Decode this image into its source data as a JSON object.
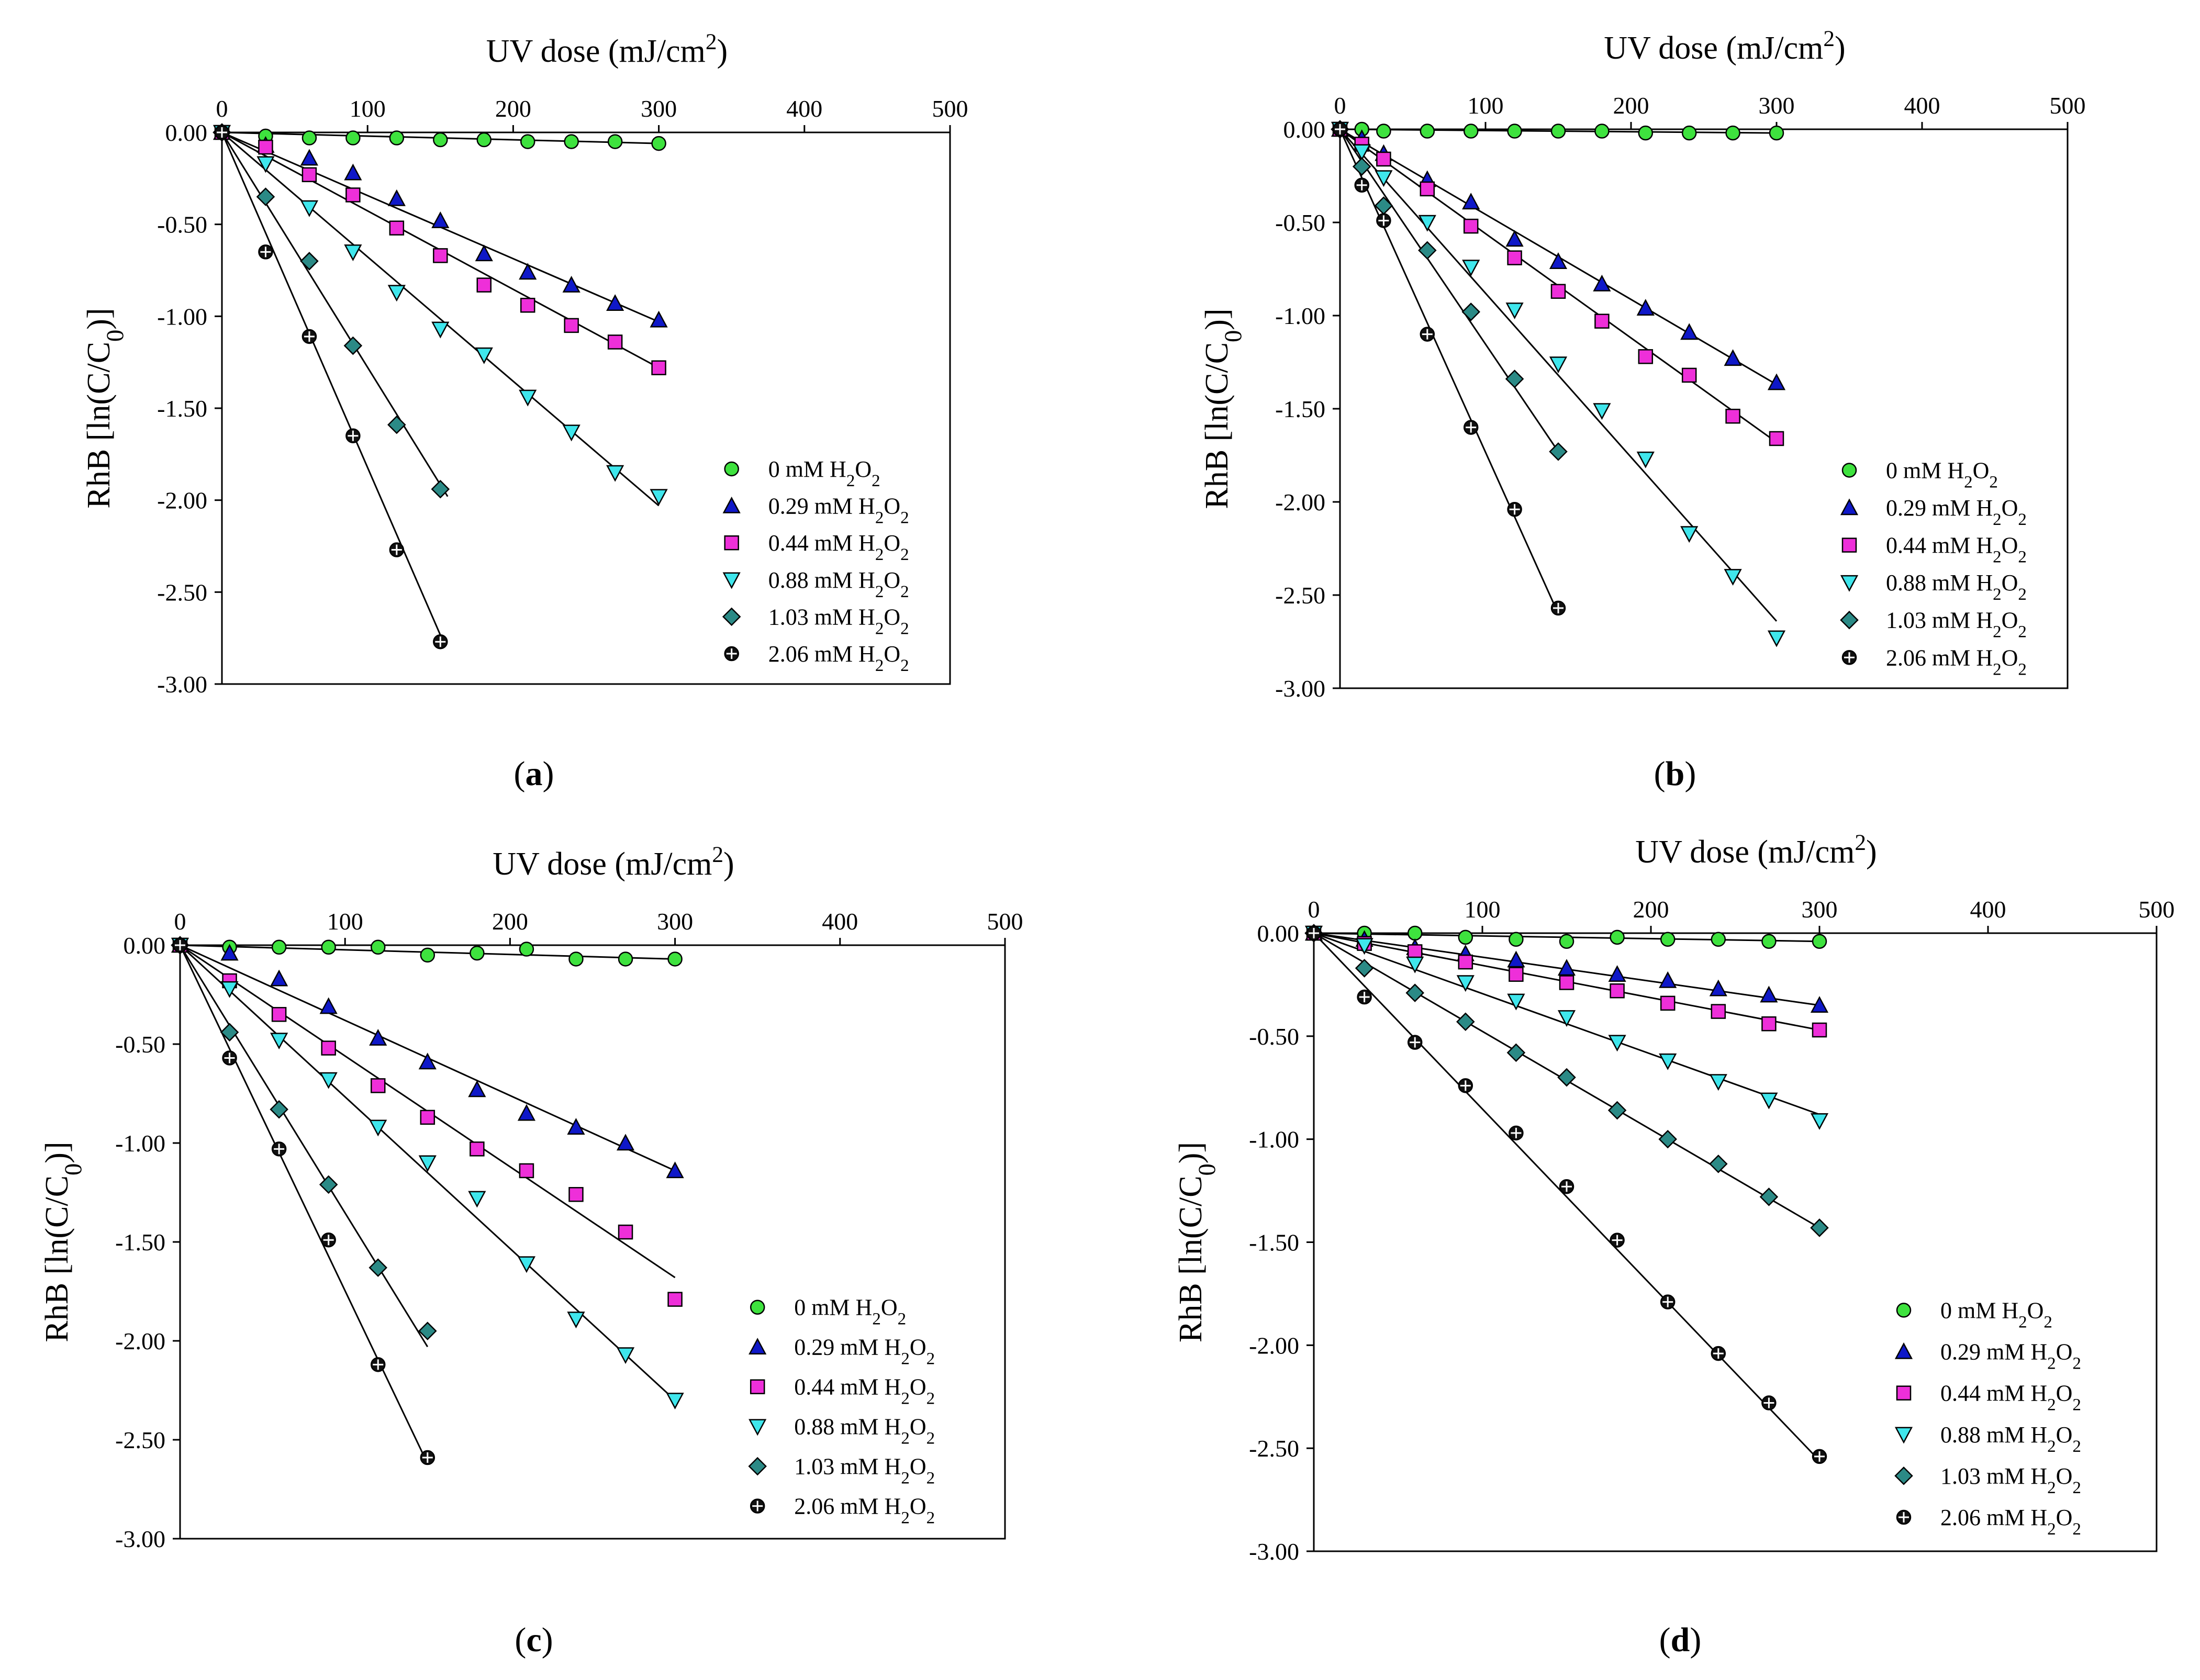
{
  "colors": {
    "0 mM": "#3ee23e",
    "0.29 mM": "#0f18c8",
    "0.44 mM": "#ee2fd9",
    "0.88 mM": "#3fe6ec",
    "1.03 mM": "#2b8a86",
    "2.06 mM": "#111111"
  },
  "chart_data": [
    {
      "type": "scatter",
      "panel": "a",
      "panel_label": "(a)",
      "title": "",
      "xlabel": "UV dose (mJ/cm2)",
      "ylabel": "RhB [ln(C/C0)]",
      "xlim": [
        0,
        500
      ],
      "ylim": [
        -3.0,
        0.0
      ],
      "xticks": [
        "0",
        "100",
        "200",
        "300",
        "400",
        "500"
      ],
      "yticks": [
        "0.00",
        "-0.50",
        "-1.00",
        "-1.50",
        "-2.00",
        "-2.50",
        "-3.00"
      ],
      "legend_position": "lower-right",
      "series": [
        {
          "name": "0 mM H2O2",
          "marker": "circle",
          "x": [
            0,
            30,
            60,
            90,
            120,
            150,
            180,
            210,
            240,
            270,
            300
          ],
          "y": [
            0,
            -0.02,
            -0.03,
            -0.03,
            -0.03,
            -0.04,
            -0.04,
            -0.05,
            -0.05,
            -0.05,
            -0.06
          ],
          "fit": [
            [
              0,
              0
            ],
            [
              300,
              -0.06
            ]
          ]
        },
        {
          "name": "0.29 mM H2O2",
          "marker": "triangle-up",
          "x": [
            0,
            30,
            60,
            90,
            120,
            150,
            180,
            210,
            240,
            270,
            300
          ],
          "y": [
            0,
            -0.07,
            -0.14,
            -0.22,
            -0.36,
            -0.48,
            -0.66,
            -0.76,
            -0.83,
            -0.93,
            -1.02
          ],
          "fit": [
            [
              0,
              0
            ],
            [
              300,
              -1.03
            ]
          ]
        },
        {
          "name": "0.44 mM H2O2",
          "marker": "square",
          "x": [
            0,
            30,
            60,
            90,
            120,
            150,
            180,
            210,
            240,
            270,
            300
          ],
          "y": [
            0,
            -0.08,
            -0.23,
            -0.34,
            -0.52,
            -0.67,
            -0.83,
            -0.94,
            -1.05,
            -1.14,
            -1.28
          ],
          "fit": [
            [
              0,
              0
            ],
            [
              300,
              -1.28
            ]
          ]
        },
        {
          "name": "0.88 mM H2O2",
          "marker": "triangle-down",
          "x": [
            0,
            30,
            60,
            90,
            120,
            150,
            180,
            210,
            240,
            270,
            300
          ],
          "y": [
            0,
            -0.17,
            -0.41,
            -0.65,
            -0.87,
            -1.07,
            -1.21,
            -1.44,
            -1.63,
            -1.85,
            -1.98
          ],
          "fit": [
            [
              0,
              0
            ],
            [
              300,
              -2.03
            ]
          ]
        },
        {
          "name": "1.03 mM H2O2",
          "marker": "diamond",
          "x": [
            0,
            30,
            60,
            90,
            120,
            150
          ],
          "y": [
            0,
            -0.35,
            -0.7,
            -1.16,
            -1.59,
            -1.94
          ],
          "fit": [
            [
              0,
              0
            ],
            [
              155,
              -1.98
            ]
          ]
        },
        {
          "name": "2.06 mM H2O2",
          "marker": "plus-circle",
          "x": [
            0,
            30,
            60,
            90,
            120,
            150
          ],
          "y": [
            0,
            -0.65,
            -1.11,
            -1.65,
            -2.27,
            -2.77
          ],
          "fit": [
            [
              0,
              0
            ],
            [
              152,
              -2.77
            ]
          ]
        }
      ]
    },
    {
      "type": "scatter",
      "panel": "b",
      "panel_label": "(b)",
      "title": "",
      "xlabel": "UV dose (mJ/cm2)",
      "ylabel": "RhB [ln(C/C0)]",
      "xlim": [
        0,
        500
      ],
      "ylim": [
        -3.0,
        0.0
      ],
      "xticks": [
        "0",
        "100",
        "200",
        "300",
        "400",
        "500"
      ],
      "yticks": [
        "0.00",
        "-0.50",
        "-1.00",
        "-1.50",
        "-2.00",
        "-2.50",
        "-3.00"
      ],
      "legend_position": "lower-right",
      "series": [
        {
          "name": "0 mM H2O2",
          "marker": "circle",
          "x": [
            0,
            15,
            30,
            60,
            90,
            120,
            150,
            180,
            210,
            240,
            270,
            300
          ],
          "y": [
            0,
            0,
            -0.01,
            -0.01,
            -0.01,
            -0.01,
            -0.01,
            -0.01,
            -0.02,
            -0.02,
            -0.02,
            -0.02
          ],
          "fit": [
            [
              0,
              0
            ],
            [
              300,
              -0.02
            ]
          ]
        },
        {
          "name": "0.29 mM H2O2",
          "marker": "triangle-up",
          "x": [
            0,
            15,
            30,
            60,
            90,
            120,
            150,
            180,
            210,
            240,
            270,
            300
          ],
          "y": [
            0,
            -0.05,
            -0.13,
            -0.27,
            -0.39,
            -0.59,
            -0.71,
            -0.83,
            -0.96,
            -1.09,
            -1.23,
            -1.36
          ],
          "fit": [
            [
              0,
              0
            ],
            [
              300,
              -1.37
            ]
          ]
        },
        {
          "name": "0.44 mM H2O2",
          "marker": "square",
          "x": [
            0,
            15,
            30,
            60,
            90,
            120,
            150,
            180,
            210,
            240,
            270,
            300
          ],
          "y": [
            0,
            -0.08,
            -0.16,
            -0.32,
            -0.52,
            -0.69,
            -0.87,
            -1.03,
            -1.22,
            -1.32,
            -1.54,
            -1.66
          ],
          "fit": [
            [
              0,
              0
            ],
            [
              300,
              -1.68
            ]
          ]
        },
        {
          "name": "0.88 mM H2O2",
          "marker": "triangle-down",
          "x": [
            0,
            15,
            30,
            60,
            90,
            120,
            150,
            180,
            210,
            240,
            270,
            300
          ],
          "y": [
            0,
            -0.12,
            -0.26,
            -0.5,
            -0.74,
            -0.97,
            -1.26,
            -1.51,
            -1.77,
            -2.17,
            -2.4,
            -2.73
          ],
          "fit": [
            [
              0,
              0
            ],
            [
              300,
              -2.64
            ]
          ]
        },
        {
          "name": "1.03 mM H2O2",
          "marker": "diamond",
          "x": [
            0,
            15,
            30,
            60,
            90,
            120,
            150
          ],
          "y": [
            0,
            -0.2,
            -0.41,
            -0.65,
            -0.98,
            -1.34,
            -1.73
          ],
          "fit": [
            [
              0,
              0
            ],
            [
              150,
              -1.73
            ]
          ]
        },
        {
          "name": "2.06 mM H2O2",
          "marker": "plus-circle",
          "x": [
            0,
            15,
            30,
            60,
            90,
            120,
            150
          ],
          "y": [
            0,
            -0.3,
            -0.49,
            -1.1,
            -1.6,
            -2.04,
            -2.57
          ],
          "fit": [
            [
              0,
              0
            ],
            [
              150,
              -2.6
            ]
          ]
        }
      ]
    },
    {
      "type": "scatter",
      "panel": "c",
      "panel_label": "(c)",
      "title": "",
      "xlabel": "UV dose (mJ/cm2)",
      "ylabel": "RhB [ln(C/C0)]",
      "xlim": [
        0,
        500
      ],
      "ylim": [
        -3.0,
        0.0
      ],
      "xticks": [
        "0",
        "100",
        "200",
        "300",
        "400",
        "500"
      ],
      "yticks": [
        "0.00",
        "-0.50",
        "-1.00",
        "-1.50",
        "-2.00",
        "-2.50",
        "-3.00"
      ],
      "legend_position": "lower-right",
      "series": [
        {
          "name": "0 mM H2O2",
          "marker": "circle",
          "x": [
            0,
            30,
            60,
            90,
            120,
            150,
            180,
            210,
            240,
            270,
            300
          ],
          "y": [
            0,
            -0.01,
            -0.01,
            -0.01,
            -0.01,
            -0.05,
            -0.04,
            -0.02,
            -0.07,
            -0.07,
            -0.07
          ],
          "fit": [
            [
              0,
              0
            ],
            [
              300,
              -0.07
            ]
          ]
        },
        {
          "name": "0.29 mM H2O2",
          "marker": "triangle-up",
          "x": [
            0,
            30,
            60,
            90,
            120,
            150,
            180,
            210,
            240,
            270,
            300
          ],
          "y": [
            0,
            -0.04,
            -0.17,
            -0.31,
            -0.47,
            -0.59,
            -0.73,
            -0.85,
            -0.92,
            -1.0,
            -1.14
          ],
          "fit": [
            [
              0,
              0
            ],
            [
              300,
              -1.14
            ]
          ]
        },
        {
          "name": "0.44 mM H2O2",
          "marker": "square",
          "x": [
            0,
            30,
            60,
            90,
            120,
            150,
            180,
            210,
            240,
            270,
            300
          ],
          "y": [
            0,
            -0.18,
            -0.35,
            -0.52,
            -0.71,
            -0.87,
            -1.03,
            -1.14,
            -1.26,
            -1.45,
            -1.79
          ],
          "fit": [
            [
              0,
              0
            ],
            [
              300,
              -1.68
            ]
          ]
        },
        {
          "name": "0.88 mM H2O2",
          "marker": "triangle-down",
          "x": [
            0,
            30,
            60,
            90,
            120,
            150,
            180,
            210,
            240,
            270,
            300
          ],
          "y": [
            0,
            -0.22,
            -0.48,
            -0.68,
            -0.92,
            -1.1,
            -1.28,
            -1.61,
            -1.89,
            -2.07,
            -2.3
          ],
          "fit": [
            [
              0,
              0
            ],
            [
              300,
              -2.3
            ]
          ]
        },
        {
          "name": "1.03 mM H2O2",
          "marker": "diamond",
          "x": [
            0,
            30,
            60,
            90,
            120,
            150
          ],
          "y": [
            0,
            -0.44,
            -0.83,
            -1.21,
            -1.63,
            -1.95
          ],
          "fit": [
            [
              0,
              0
            ],
            [
              150,
              -2.03
            ]
          ]
        },
        {
          "name": "2.06 mM H2O2",
          "marker": "plus-circle",
          "x": [
            0,
            30,
            60,
            90,
            120,
            150
          ],
          "y": [
            0,
            -0.57,
            -1.03,
            -1.49,
            -2.12,
            -2.59
          ],
          "fit": [
            [
              0,
              0
            ],
            [
              150,
              -2.62
            ]
          ]
        }
      ]
    },
    {
      "type": "scatter",
      "panel": "d",
      "panel_label": "(d)",
      "title": "",
      "xlabel": "UV dose (mJ/cm2)",
      "ylabel": "RhB [ln(C/C0)]",
      "xlim": [
        0,
        500
      ],
      "ylim": [
        -3.0,
        0.0
      ],
      "xticks": [
        "0",
        "100",
        "200",
        "300",
        "400",
        "500"
      ],
      "yticks": [
        "0.00",
        "-0.50",
        "-1.00",
        "-1.50",
        "-2.00",
        "-2.50",
        "-3.00"
      ],
      "legend_position": "lower-right",
      "series": [
        {
          "name": "0 mM H2O2",
          "marker": "circle",
          "x": [
            0,
            30,
            60,
            90,
            120,
            150,
            180,
            210,
            240,
            270,
            300
          ],
          "y": [
            0,
            0,
            0,
            -0.02,
            -0.03,
            -0.04,
            -0.02,
            -0.03,
            -0.03,
            -0.04,
            -0.04
          ],
          "fit": [
            [
              0,
              0
            ],
            [
              300,
              -0.04
            ]
          ]
        },
        {
          "name": "0.29 mM H2O2",
          "marker": "triangle-up",
          "x": [
            0,
            30,
            60,
            90,
            120,
            150,
            180,
            210,
            240,
            270,
            300
          ],
          "y": [
            0,
            -0.03,
            -0.07,
            -0.1,
            -0.13,
            -0.17,
            -0.2,
            -0.23,
            -0.27,
            -0.3,
            -0.35
          ],
          "fit": [
            [
              0,
              0
            ],
            [
              300,
              -0.35
            ]
          ]
        },
        {
          "name": "0.44 mM H2O2",
          "marker": "square",
          "x": [
            0,
            30,
            60,
            90,
            120,
            150,
            180,
            210,
            240,
            270,
            300
          ],
          "y": [
            0,
            -0.05,
            -0.09,
            -0.14,
            -0.2,
            -0.24,
            -0.28,
            -0.34,
            -0.38,
            -0.44,
            -0.47
          ],
          "fit": [
            [
              0,
              0
            ],
            [
              300,
              -0.47
            ]
          ]
        },
        {
          "name": "0.88 mM H2O2",
          "marker": "triangle-down",
          "x": [
            0,
            30,
            60,
            90,
            120,
            150,
            180,
            210,
            240,
            270,
            300
          ],
          "y": [
            0,
            -0.06,
            -0.15,
            -0.24,
            -0.33,
            -0.41,
            -0.53,
            -0.62,
            -0.72,
            -0.81,
            -0.91
          ],
          "fit": [
            [
              0,
              0
            ],
            [
              300,
              -0.88
            ]
          ]
        },
        {
          "name": "1.03 mM H2O2",
          "marker": "diamond",
          "x": [
            0,
            30,
            60,
            90,
            120,
            150,
            180,
            210,
            240,
            270,
            300
          ],
          "y": [
            0,
            -0.17,
            -0.29,
            -0.43,
            -0.58,
            -0.7,
            -0.86,
            -1.0,
            -1.12,
            -1.28,
            -1.43
          ],
          "fit": [
            [
              0,
              0
            ],
            [
              300,
              -1.43
            ]
          ]
        },
        {
          "name": "2.06 mM H2O2",
          "marker": "plus-circle",
          "x": [
            0,
            30,
            60,
            90,
            120,
            150,
            180,
            210,
            240,
            270,
            300
          ],
          "y": [
            0,
            -0.31,
            -0.53,
            -0.74,
            -0.97,
            -1.23,
            -1.49,
            -1.79,
            -2.04,
            -2.28,
            -2.54
          ],
          "fit": [
            [
              0,
              0
            ],
            [
              300,
              -2.56
            ]
          ]
        }
      ]
    }
  ]
}
